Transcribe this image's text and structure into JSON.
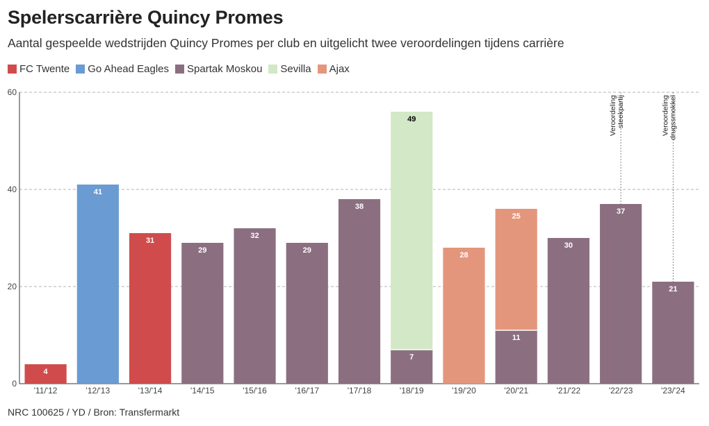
{
  "title": "Spelerscarrière Quincy Promes",
  "subtitle": "Aantal gespeelde wedstrijden Quincy Promes per club en uitgelicht twee veroordelingen tijdens carrière",
  "footer": "NRC 100625 / YD / Bron: Transfermarkt",
  "legend": [
    {
      "name": "FC Twente",
      "color": "#d04c4c"
    },
    {
      "name": "Go Ahead Eagles",
      "color": "#6a9bd3"
    },
    {
      "name": "Spartak Moskou",
      "color": "#8b6f80"
    },
    {
      "name": "Sevilla",
      "color": "#d2e8c6"
    },
    {
      "name": "Ajax",
      "color": "#e4967c"
    }
  ],
  "chart_data": {
    "type": "bar",
    "stacked": true,
    "categories": [
      "'11/'12",
      "'12/'13",
      "'13/'14",
      "'14/'15",
      "'15/'16",
      "'16/'17",
      "'17/'18",
      "'18/'19",
      "'19/'20",
      "'20/'21",
      "'21/'22",
      "'22/'23",
      "'23/'24"
    ],
    "series": [
      {
        "name": "FC Twente",
        "color": "#d04c4c",
        "values": [
          4,
          0,
          31,
          0,
          0,
          0,
          0,
          0,
          0,
          0,
          0,
          0,
          0
        ]
      },
      {
        "name": "Go Ahead Eagles",
        "color": "#6a9bd3",
        "values": [
          0,
          41,
          0,
          0,
          0,
          0,
          0,
          0,
          0,
          0,
          0,
          0,
          0
        ]
      },
      {
        "name": "Spartak Moskou",
        "color": "#8b6f80",
        "values": [
          0,
          0,
          0,
          29,
          32,
          29,
          38,
          7,
          0,
          11,
          30,
          37,
          21
        ]
      },
      {
        "name": "Sevilla",
        "color": "#d2e8c6",
        "values": [
          0,
          0,
          0,
          0,
          0,
          0,
          0,
          49,
          0,
          0,
          0,
          0,
          0
        ]
      },
      {
        "name": "Ajax",
        "color": "#e4967c",
        "values": [
          0,
          0,
          0,
          0,
          0,
          0,
          0,
          0,
          28,
          25,
          0,
          0,
          0
        ]
      }
    ],
    "ylim": [
      0,
      60
    ],
    "yticks": [
      0,
      20,
      40,
      60
    ],
    "grid": true,
    "legend_position": "top-left",
    "annotations": [
      {
        "category": "'22/'23",
        "lines": [
          "Veroordeling",
          "steekpartij"
        ]
      },
      {
        "category": "'23/'24",
        "lines": [
          "Veroordeling",
          "drugssmokkel"
        ]
      }
    ]
  }
}
